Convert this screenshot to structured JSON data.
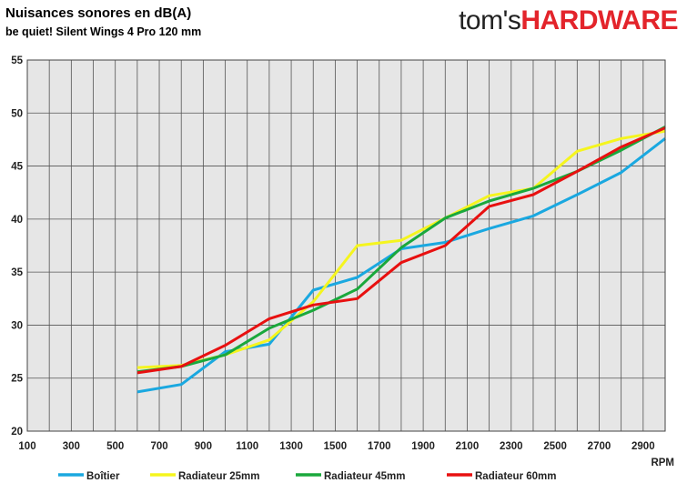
{
  "header": {
    "title": "Nuisances sonores en dB(A)",
    "subtitle": "be quiet! Silent Wings 4 Pro 120 mm",
    "logo_part1": "tom's",
    "logo_part2": "HARDWARE"
  },
  "chart_data": {
    "type": "line",
    "xlabel": "RPM",
    "ylabel": "",
    "xlim": [
      100,
      3000
    ],
    "ylim": [
      20,
      55
    ],
    "x_ticks": [
      100,
      300,
      500,
      700,
      900,
      1100,
      1300,
      1500,
      1700,
      1900,
      2100,
      2300,
      2500,
      2700,
      2900
    ],
    "y_ticks": [
      20,
      25,
      30,
      35,
      40,
      45,
      50,
      55
    ],
    "grid": true,
    "legend_position": "bottom",
    "x": [
      600,
      800,
      1000,
      1200,
      1400,
      1600,
      1800,
      2000,
      2200,
      2400,
      2600,
      2800,
      3000
    ],
    "series": [
      {
        "name": "Boîtier",
        "color": "#1aa8e0",
        "values": [
          23.7,
          24.4,
          27.5,
          28.2,
          33.3,
          34.5,
          37.2,
          37.8,
          39.1,
          40.3,
          42.3,
          44.4,
          47.6
        ]
      },
      {
        "name": "Radiateur 25mm",
        "color": "#f5f51e",
        "values": [
          26.0,
          26.2,
          27.2,
          28.6,
          32.2,
          37.5,
          38.0,
          40.1,
          42.2,
          42.9,
          46.4,
          47.6,
          48.3
        ]
      },
      {
        "name": "Radiateur 45mm",
        "color": "#1aa83c",
        "values": [
          25.6,
          26.1,
          27.2,
          29.7,
          31.4,
          33.4,
          37.3,
          40.1,
          41.7,
          42.9,
          44.5,
          46.5,
          48.7
        ]
      },
      {
        "name": "Radiateur 60mm",
        "color": "#e81010",
        "values": [
          25.5,
          26.1,
          28.1,
          30.6,
          31.9,
          32.5,
          35.9,
          37.5,
          41.2,
          42.3,
          44.5,
          46.8,
          48.6
        ]
      }
    ]
  }
}
